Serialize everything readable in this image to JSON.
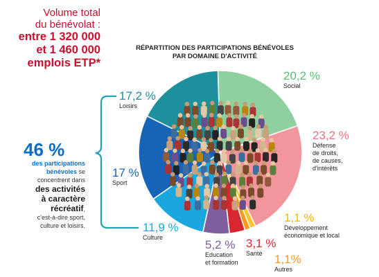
{
  "header": {
    "volume_line1": "Volume total",
    "volume_line2": "du bénévolat :",
    "volume_line3": "entre 1 320 000",
    "volume_line4": "et 1 460 000",
    "volume_line5": "emplois ETP*"
  },
  "summary": {
    "percent": "46 %",
    "text1": "des participations",
    "text2": "bénévoles",
    "text3": "se",
    "text4": "concentrent dans",
    "text5": "des activités",
    "text6": "à caractère",
    "text7": "récréatif",
    "text8": ",",
    "text9": "c'est-à-dire sport,",
    "text10": "culture et loisirs."
  },
  "chart_data": {
    "type": "pie",
    "title_line1": "RÉPARTITION DES PARTICIPATIONS BÉNÉVOLES",
    "title_line2": "PAR DOMAINE D'ACTIVITÉ",
    "slices": [
      {
        "label": "Social",
        "value": 20.2,
        "display": "20,2 %",
        "color": "#8fd19e",
        "label_lines": [
          "Social"
        ]
      },
      {
        "label": "Défense de droits, de causes, d'intérêts",
        "value": 23.2,
        "display": "23,2 %",
        "color": "#f2959c",
        "label_lines": [
          "Défense",
          "de droits,",
          "de causes,",
          "d'intérêts"
        ]
      },
      {
        "label": "Développement économique et local",
        "value": 1.1,
        "display": "1,1 %",
        "color": "#fbc531",
        "label_lines": [
          "Développement",
          "économique et local"
        ]
      },
      {
        "label": "Autres",
        "value": 1.1,
        "display": "1,1%",
        "color": "#f59b1e",
        "label_lines": [
          "Autres"
        ]
      },
      {
        "label": "Santé",
        "value": 3.1,
        "display": "3,1 %",
        "color": "#d7282f",
        "label_lines": [
          "Santé"
        ]
      },
      {
        "label": "Education et formation",
        "value": 5.2,
        "display": "5,2 %",
        "color": "#7e5e9c",
        "label_lines": [
          "Education",
          "et formation"
        ]
      },
      {
        "label": "Culture",
        "value": 11.9,
        "display": "11,9 %",
        "color": "#1aa7e0",
        "label_lines": [
          "Culture"
        ]
      },
      {
        "label": "Sport",
        "value": 17.0,
        "display": "17 %",
        "color": "#1763b8",
        "label_lines": [
          "Sport"
        ]
      },
      {
        "label": "Loisirs",
        "value": 17.2,
        "display": "17,2 %",
        "color": "#1e8f9c",
        "label_lines": [
          "Loisirs"
        ]
      }
    ]
  }
}
